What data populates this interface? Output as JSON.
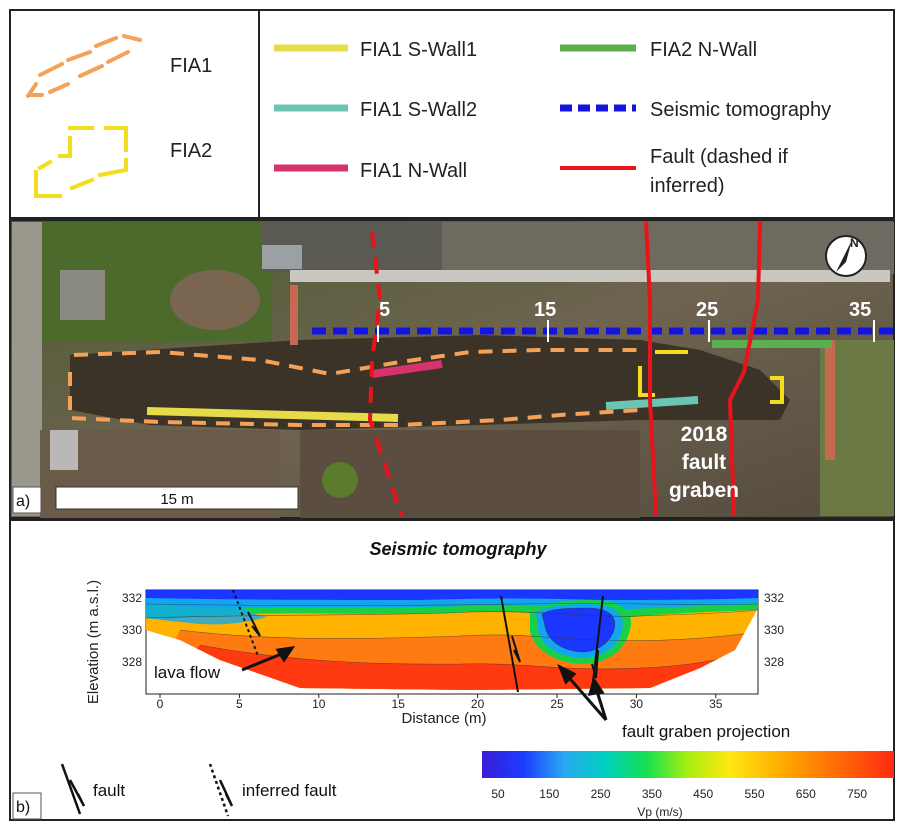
{
  "legend": {
    "outline_items": [
      {
        "label": "FIA1",
        "color": "#f4a259"
      },
      {
        "label": "FIA2",
        "color": "#f2de1c"
      }
    ],
    "line_items": [
      {
        "label": "FIA1 S-Wall1",
        "color": "#e6dc4a",
        "style": "solid"
      },
      {
        "label": "FIA1 S-Wall2",
        "color": "#6cc4b4",
        "style": "solid"
      },
      {
        "label": "FIA1 N-Wall",
        "color": "#d6336c",
        "style": "solid"
      },
      {
        "label": "FIA2 N-Wall",
        "color": "#5cae4e",
        "style": "solid"
      },
      {
        "label": "Seismic tomography",
        "color": "#1414e0",
        "style": "dashed"
      },
      {
        "label": "Fault  (dashed if",
        "label_line2": "inferred)",
        "color": "#e8141a",
        "style": "solid"
      }
    ]
  },
  "photo": {
    "panel_label": "a)",
    "scalebar_label": "15 m",
    "distance_marks": [
      "5",
      "15",
      "25",
      "35"
    ],
    "graben_label": [
      "2018",
      "fault",
      "graben"
    ],
    "north_symbol": "N"
  },
  "tomography": {
    "panel_label": "b)",
    "title": "Seismic tomography",
    "y_label": "Elevation (m a.s.l.)",
    "x_label": "Distance (m)",
    "x_ticks": [
      "0",
      "5",
      "10",
      "15",
      "20",
      "25",
      "30",
      "35"
    ],
    "y_ticks_left": [
      "332",
      "330",
      "328"
    ],
    "y_ticks_right": [
      "332",
      "330",
      "328"
    ],
    "annotations": {
      "lava_flow": "lava flow",
      "graben_projection": "fault graben projection"
    },
    "symbols": {
      "fault": "fault",
      "inferred_fault": "inferred fault"
    },
    "colorbar": {
      "ticks": [
        "50",
        "150",
        "250",
        "350",
        "450",
        "550",
        "650",
        "750"
      ],
      "label": "Vp (m/s)",
      "colors": [
        "#1e1ee6",
        "#2060ff",
        "#00c8f0",
        "#00e070",
        "#b4f000",
        "#ffe000",
        "#ff9000",
        "#ff2a00"
      ]
    }
  }
}
